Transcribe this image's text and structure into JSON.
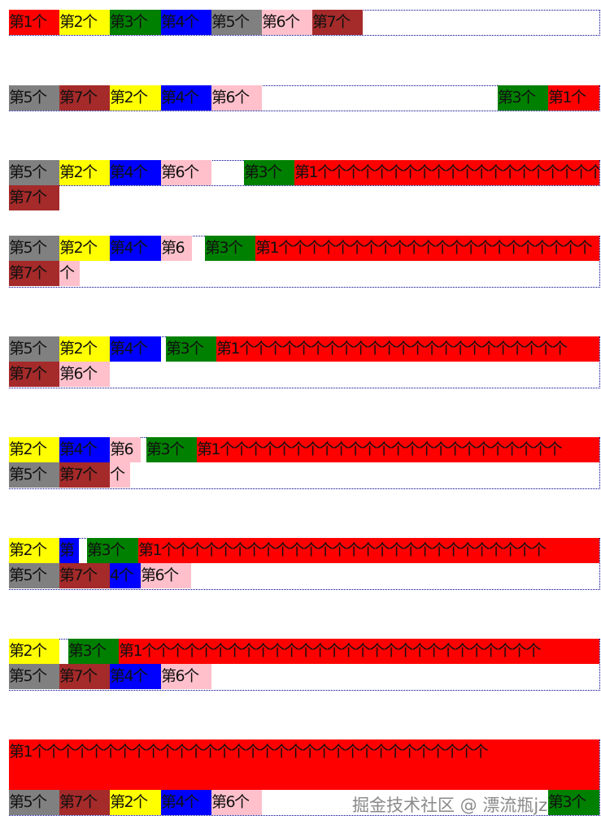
{
  "colors": {
    "red": "#ff0000",
    "yellow": "#ffff00",
    "green": "#008000",
    "blue": "#0000ff",
    "gray": "#808080",
    "pink": "#ffc0cb",
    "brown": "#a52a2a"
  },
  "sections": [
    {
      "items": [
        {
          "text": "第1个",
          "color": "red"
        },
        {
          "text": "第2个",
          "color": "yellow"
        },
        {
          "text": "第3个",
          "color": "green"
        },
        {
          "text": "第4个",
          "color": "blue"
        },
        {
          "text": "第5个",
          "color": "gray"
        },
        {
          "text": "第6个",
          "color": "pink"
        },
        {
          "text": "第7个",
          "color": "brown"
        }
      ]
    },
    {
      "items": [
        {
          "text": "第5个",
          "color": "gray"
        },
        {
          "text": "第7个",
          "color": "brown"
        },
        {
          "text": "第2个",
          "color": "yellow"
        },
        {
          "text": "第4个",
          "color": "blue"
        },
        {
          "text": "第6个",
          "color": "pink"
        },
        {
          "text": "第3个",
          "color": "green"
        },
        {
          "text": "第1个",
          "color": "red"
        }
      ]
    },
    {
      "items": [
        {
          "text": "第5个",
          "color": "gray"
        },
        {
          "text": "第2个",
          "color": "yellow"
        },
        {
          "text": "第4个",
          "color": "blue"
        },
        {
          "text": "第6个",
          "color": "pink"
        },
        {
          "text": "第3个",
          "color": "green"
        },
        {
          "text": "第1个个个个个个个个个个个个个个个个个个个个",
          "color": "red"
        },
        {
          "text": "第7个",
          "color": "brown"
        }
      ]
    },
    {
      "items": [
        {
          "text": "第5个",
          "color": "gray"
        },
        {
          "text": "第2个",
          "color": "yellow"
        },
        {
          "text": "第4个",
          "color": "blue"
        },
        {
          "text": "第6",
          "color": "pink"
        },
        {
          "text": "第3个",
          "color": "green"
        },
        {
          "text": "第1个个个个个个个个个个个个个个个个个个个个个个",
          "color": "red"
        },
        {
          "text": "第7个",
          "color": "brown"
        },
        {
          "text": "个",
          "color": "pink"
        }
      ]
    },
    {
      "items": [
        {
          "text": "第5个",
          "color": "gray"
        },
        {
          "text": "第2个",
          "color": "yellow"
        },
        {
          "text": "第4个",
          "color": "blue"
        },
        {
          "text": "第3个",
          "color": "green"
        },
        {
          "text": "第1个个个个个个个个个个个个个个个个个个个个个个个",
          "color": "red"
        },
        {
          "text": "第7个",
          "color": "brown"
        },
        {
          "text": "第6个",
          "color": "pink"
        }
      ]
    },
    {
      "items": [
        {
          "text": "第2个",
          "color": "yellow"
        },
        {
          "text": "第4个",
          "color": "blue"
        },
        {
          "text": "第6",
          "color": "pink"
        },
        {
          "text": "第3个",
          "color": "green"
        },
        {
          "text": "第1个个个个个个个个个个个个个个个个个个个个个个个个",
          "color": "red"
        },
        {
          "text": "第5个",
          "color": "gray"
        },
        {
          "text": "第7个",
          "color": "brown"
        },
        {
          "text": "个",
          "color": "pink"
        }
      ]
    },
    {
      "items": [
        {
          "text": "第2个",
          "color": "yellow"
        },
        {
          "text": "第",
          "color": "blue"
        },
        {
          "text": "第3个",
          "color": "green"
        },
        {
          "text": "第1个个个个个个个个个个个个个个个个个个个个个个个个个个个",
          "color": "red"
        },
        {
          "text": "第5个",
          "color": "gray"
        },
        {
          "text": "第7个",
          "color": "brown"
        },
        {
          "text": "4个",
          "color": "blue"
        },
        {
          "text": "第6个",
          "color": "pink"
        }
      ]
    },
    {
      "items": [
        {
          "text": "第2个",
          "color": "yellow"
        },
        {
          "text": "第3个",
          "color": "green"
        },
        {
          "text": "第1个个个个个个个个个个个个个个个个个个个个个个个个个个个个",
          "color": "red"
        },
        {
          "text": "第5个",
          "color": "gray"
        },
        {
          "text": "第7个",
          "color": "brown"
        },
        {
          "text": "第4个",
          "color": "blue"
        },
        {
          "text": "第6个",
          "color": "pink"
        }
      ]
    },
    {
      "items": [
        {
          "text": "第1个个个个个个个个个个个个个个个个个个个个个个个个个个个个个个个个",
          "color": "red"
        },
        {
          "text": "第5个",
          "color": "gray"
        },
        {
          "text": "第7个",
          "color": "brown"
        },
        {
          "text": "第2个",
          "color": "yellow"
        },
        {
          "text": "第4个",
          "color": "blue"
        },
        {
          "text": "第6个",
          "color": "pink"
        },
        {
          "text": "第3个",
          "color": "green"
        }
      ]
    }
  ],
  "watermark": "掘金技术社区 @ 漂流瓶jz"
}
